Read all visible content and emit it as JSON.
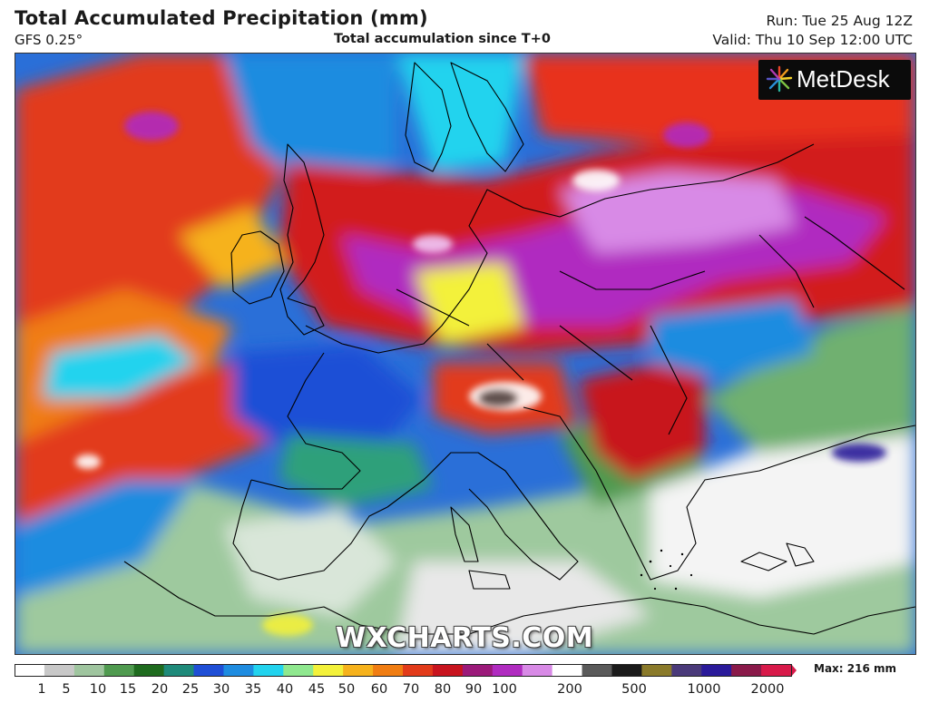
{
  "header": {
    "title": "Total Accumulated Precipitation (mm)",
    "model": "GFS 0.25°",
    "subtitle": "Total accumulation since T+0",
    "run": "Run: Tue 25 Aug 12Z",
    "valid": "Valid: Thu 10 Sep 12:00 UTC"
  },
  "logo": {
    "text": "MetDesk",
    "icon": "metdesk-burst-logo"
  },
  "watermark": "WXCHARTS.COM",
  "legend": {
    "max_label": "Max: 216 mm",
    "ticks": [
      "1",
      "5",
      "10",
      "15",
      "20",
      "25",
      "30",
      "35",
      "40",
      "45",
      "50",
      "60",
      "70",
      "80",
      "90",
      "100",
      "200",
      "500",
      "1000",
      "2000"
    ],
    "colors": [
      "#ffffff",
      "#c8c8c8",
      "#9fc59f",
      "#4f9a4f",
      "#1e6b1e",
      "#1e8a7a",
      "#1f4fd6",
      "#1e8ce0",
      "#22d3ee",
      "#8fe88f",
      "#f3f13a",
      "#f6b21c",
      "#f07d12",
      "#e23b1a",
      "#c8141e",
      "#9b1a7a",
      "#b02cc0",
      "#d88ae6",
      "#ffffff",
      "#5a5a5a",
      "#1b1b1b",
      "#8a7a2a",
      "#4a3a7a",
      "#2a1a9a",
      "#8a1a4a",
      "#d81a4a"
    ]
  }
}
